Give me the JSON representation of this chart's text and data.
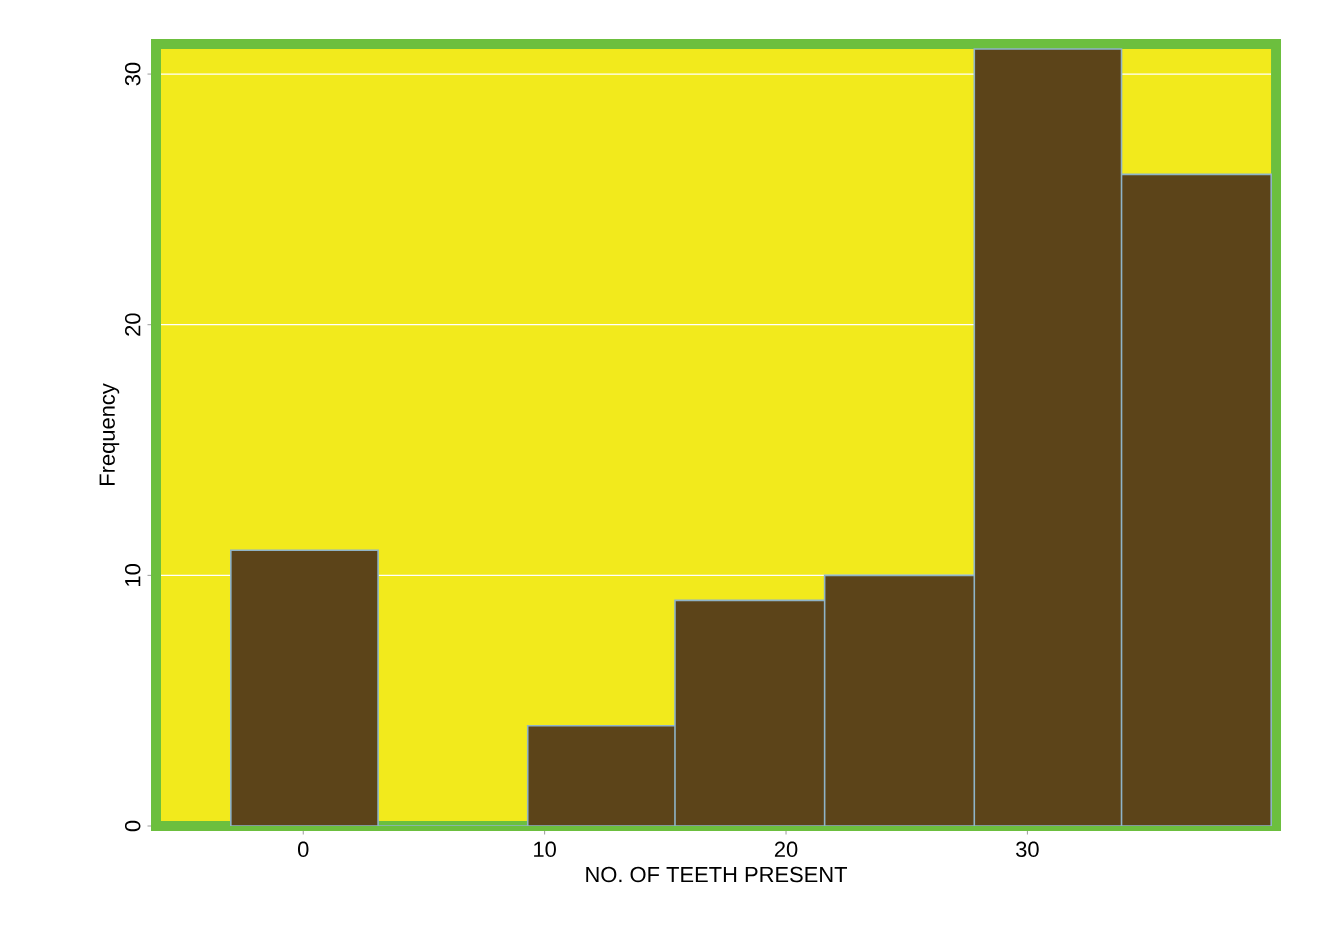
{
  "chart_data": {
    "type": "histogram",
    "xlabel": "NO. OF TEETH PRESENT",
    "ylabel": "Frequency",
    "bins": [
      -3,
      3.1,
      9.3,
      15.4,
      21.6,
      27.8,
      33.9,
      40.1
    ],
    "values": [
      11,
      0,
      4,
      9,
      10,
      31,
      26
    ],
    "color": "#5c4419",
    "xlim": [
      -6.1,
      40.3
    ],
    "ylim": [
      0,
      31.2
    ],
    "xticks": [
      0,
      10,
      20,
      30
    ],
    "yticks": [
      0,
      10,
      20,
      30
    ],
    "grid": "y"
  }
}
